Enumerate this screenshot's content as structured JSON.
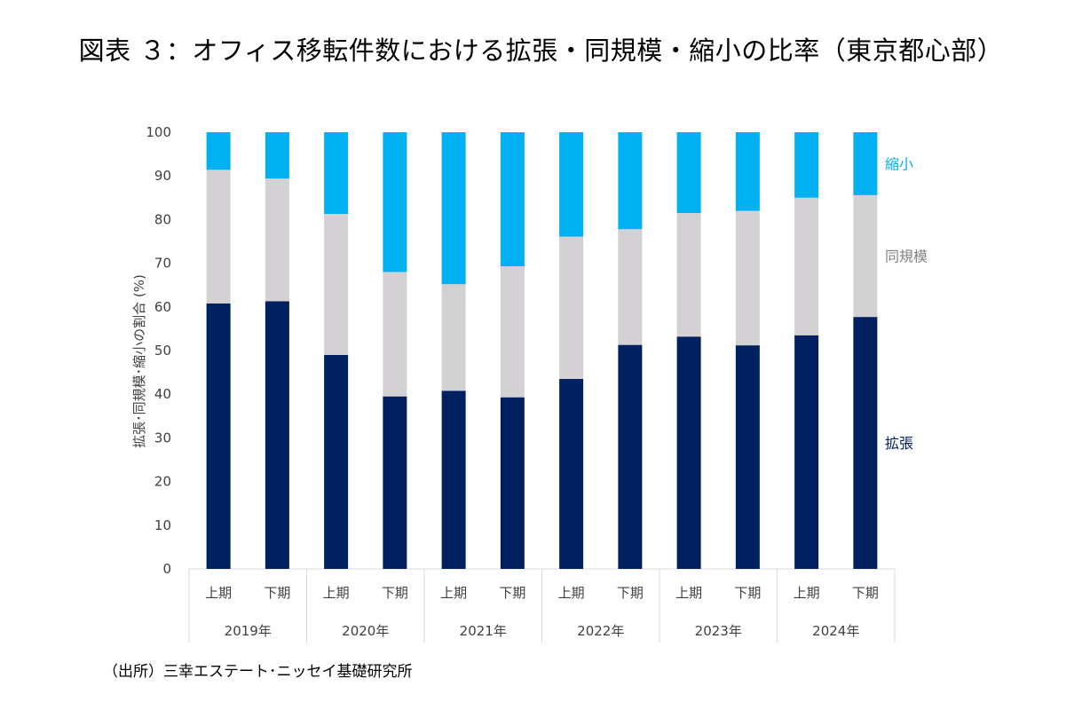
{
  "title": "図表 ３：オフィス移転件数における拡張・同規模・縮小の比率（東京都心部）",
  "source": "（出所）三幸エステート･ニッセイ基礎研究所",
  "chart_data": {
    "type": "bar",
    "stacked": true,
    "title": "図表 ３：オフィス移転件数における拡張・同規模・縮小の比率（東京都心部）",
    "ylabel": "拡張･同規模･縮小の割合 (%)",
    "xlabel": "",
    "ylim": [
      0,
      100
    ],
    "yticks": [
      0,
      10,
      20,
      30,
      40,
      50,
      60,
      70,
      80,
      90,
      100
    ],
    "grid": false,
    "categories": [
      "上期",
      "下期",
      "上期",
      "下期",
      "上期",
      "下期",
      "上期",
      "下期",
      "上期",
      "下期",
      "上期",
      "下期"
    ],
    "groups": [
      {
        "label": "2019年",
        "span": 2
      },
      {
        "label": "2020年",
        "span": 2
      },
      {
        "label": "2021年",
        "span": 2
      },
      {
        "label": "2022年",
        "span": 2
      },
      {
        "label": "2023年",
        "span": 2
      },
      {
        "label": "2024年",
        "span": 2
      }
    ],
    "series": [
      {
        "name": "拡張",
        "color": "#002060",
        "values": [
          60.8,
          61.3,
          49.0,
          39.5,
          40.8,
          39.3,
          43.5,
          51.3,
          53.2,
          51.2,
          53.5,
          57.7
        ]
      },
      {
        "name": "同規模",
        "color": "#d3d1d3",
        "values": [
          30.6,
          28.1,
          32.3,
          28.5,
          24.4,
          30.0,
          32.6,
          26.5,
          28.3,
          30.8,
          31.5,
          27.9
        ]
      },
      {
        "name": "縮小",
        "color": "#00b0f0",
        "values": [
          8.6,
          10.6,
          18.7,
          32.0,
          34.8,
          30.7,
          23.9,
          22.2,
          18.5,
          18.0,
          15.0,
          14.4
        ]
      }
    ],
    "series_label_colors": {
      "拡張": "#002060",
      "同規模": "#808080",
      "縮小": "#00b0f0"
    },
    "legend": "right (labels beside last bar)"
  }
}
